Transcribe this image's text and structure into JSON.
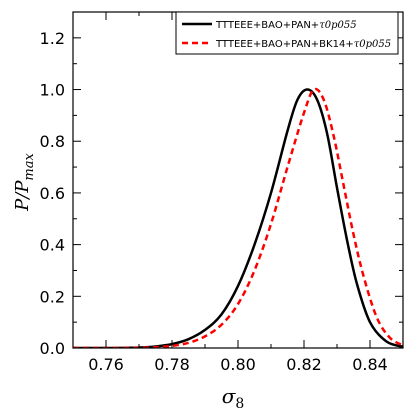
{
  "chart_data": {
    "type": "line",
    "xlabel": "σ",
    "xlabel_sub": "8",
    "ylabel_main": "P/P",
    "ylabel_sub": "max",
    "xlim": [
      0.75,
      0.85
    ],
    "ylim": [
      0.0,
      1.3
    ],
    "xticks": [
      "0.76",
      "0.78",
      "0.80",
      "0.82",
      "0.84"
    ],
    "yticks": [
      "0.0",
      "0.2",
      "0.4",
      "0.6",
      "0.8",
      "1.0",
      "1.2"
    ],
    "grid": false,
    "legend_position": "top-right",
    "series": [
      {
        "name": "TTTEEE+BAO+PAN+",
        "name_math": "τ0p055",
        "color": "#000000",
        "style": "solid",
        "x": [
          0.75,
          0.76,
          0.77,
          0.775,
          0.78,
          0.785,
          0.79,
          0.795,
          0.8,
          0.805,
          0.81,
          0.815,
          0.818,
          0.821,
          0.824,
          0.827,
          0.83,
          0.833,
          0.836,
          0.84,
          0.845,
          0.85
        ],
        "y": [
          0.0,
          0.0,
          0.002,
          0.006,
          0.015,
          0.034,
          0.07,
          0.13,
          0.24,
          0.4,
          0.6,
          0.84,
          0.96,
          1.0,
          0.96,
          0.83,
          0.62,
          0.42,
          0.25,
          0.1,
          0.025,
          0.005
        ]
      },
      {
        "name": "TTTEEE+BAO+PAN+BK14+",
        "name_math": "τ0p055",
        "color": "#ff0000",
        "style": "dashed",
        "x": [
          0.75,
          0.76,
          0.77,
          0.775,
          0.78,
          0.785,
          0.79,
          0.795,
          0.8,
          0.805,
          0.81,
          0.815,
          0.82,
          0.823,
          0.826,
          0.829,
          0.832,
          0.835,
          0.838,
          0.842,
          0.846,
          0.85
        ],
        "y": [
          0.0,
          0.0,
          0.001,
          0.003,
          0.008,
          0.02,
          0.045,
          0.09,
          0.17,
          0.3,
          0.48,
          0.7,
          0.91,
          1.0,
          0.96,
          0.82,
          0.63,
          0.44,
          0.28,
          0.12,
          0.04,
          0.01
        ]
      }
    ]
  }
}
